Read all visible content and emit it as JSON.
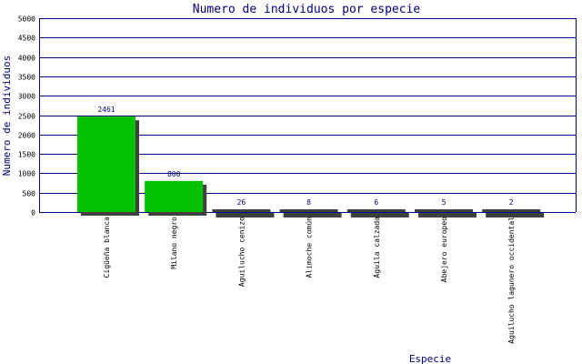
{
  "chart_data": {
    "type": "bar",
    "title": "Numero de individuos por especie",
    "xlabel": "Especie",
    "ylabel": "Numero de individuos",
    "ylim": [
      0,
      5000
    ],
    "yticks": [
      0,
      500,
      1000,
      1500,
      2000,
      2500,
      3000,
      3500,
      4000,
      4500,
      5000
    ],
    "grid": true,
    "categories": [
      "Cigüeña blanca",
      "Milano negro",
      "Aguilucho cenizo",
      "Alimoche común",
      "Águila calzada",
      "Abejero europeo",
      "Aguilucho lagunero occidental"
    ],
    "values": [
      2461,
      800,
      26,
      8,
      6,
      5,
      2
    ],
    "data_labels": [
      "2461",
      "800",
      "26",
      "8",
      "6",
      "5",
      "2"
    ]
  },
  "colors": {
    "bar": "#00c000",
    "bar_shadow": "#404040",
    "axis_line": "#000080",
    "text": "#000080",
    "label_text": "#000000",
    "background": "#ffffff"
  }
}
